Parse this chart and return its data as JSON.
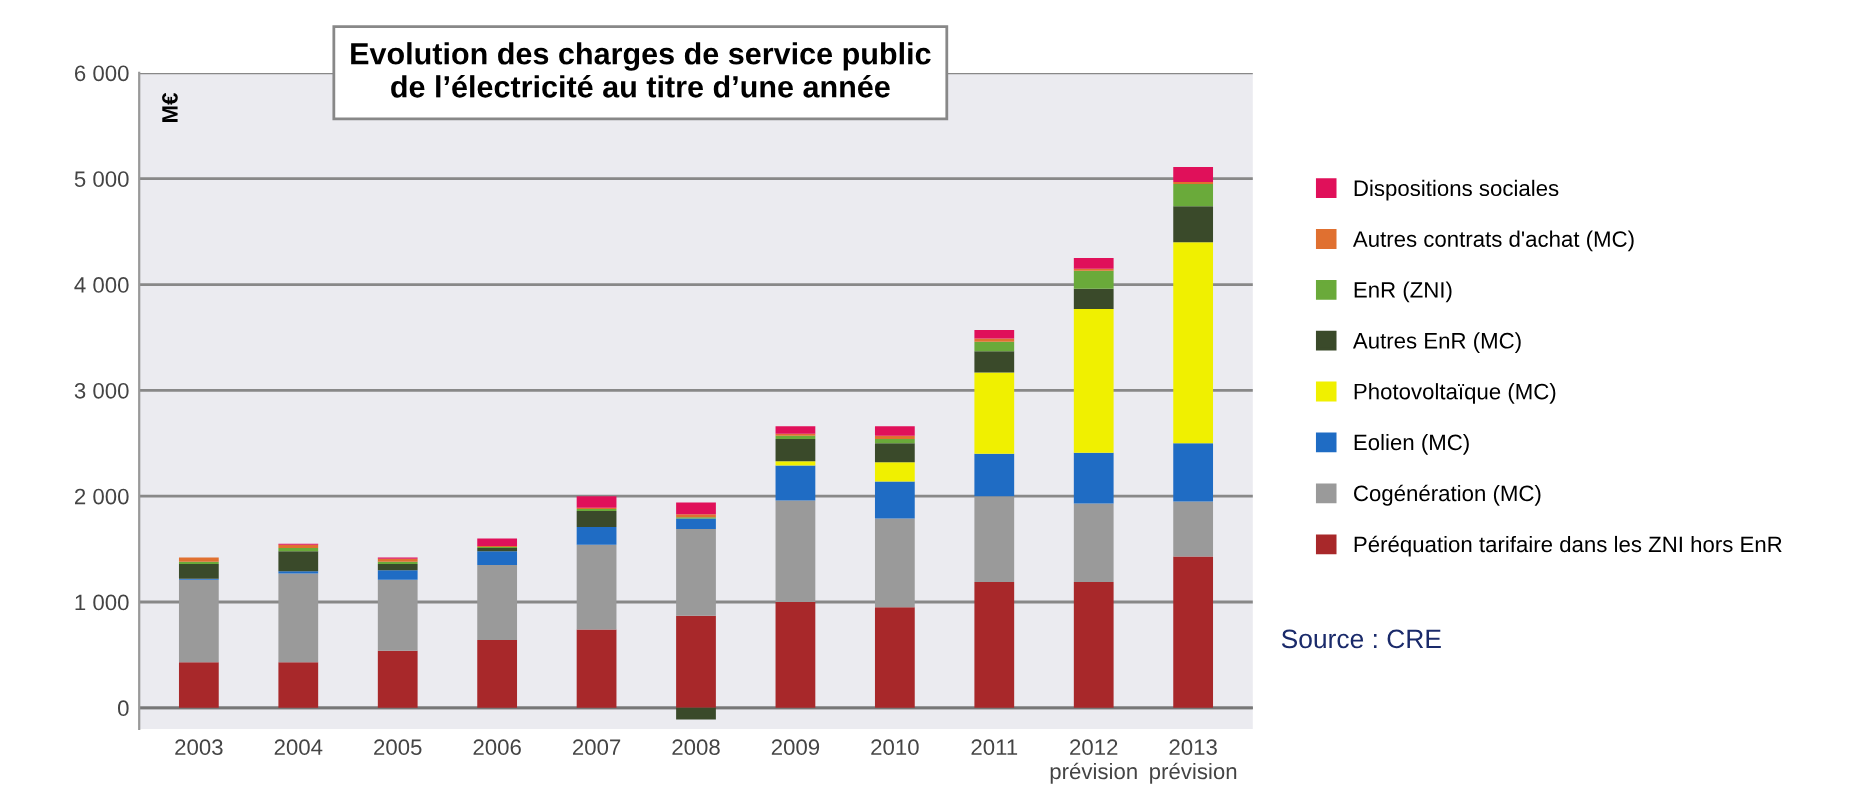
{
  "chart_data": {
    "type": "bar",
    "stacked": true,
    "title": "Evolution des charges de service public\nde l’électricité au titre d’une année",
    "ylabel": "M€",
    "categories": [
      "2003",
      "2004",
      "2005",
      "2006",
      "2007",
      "2008",
      "2009",
      "2010",
      "2011",
      "2012\nprévision",
      "2013\nprévision"
    ],
    "series": [
      {
        "name": "Péréquation tarifaire dans les ZNI hors EnR",
        "color": "#a8282a",
        "values": [
          430,
          430,
          540,
          640,
          740,
          870,
          1000,
          950,
          1190,
          1190,
          1430
        ]
      },
      {
        "name": "Cogénération (MC)",
        "color": "#9a9a9a",
        "values": [
          780,
          840,
          670,
          710,
          800,
          820,
          960,
          840,
          810,
          740,
          520
        ]
      },
      {
        "name": "Eolien (MC)",
        "color": "#1f6cc4",
        "values": [
          10,
          20,
          90,
          130,
          170,
          100,
          330,
          350,
          400,
          480,
          550
        ]
      },
      {
        "name": "Photovoltaïque (MC)",
        "color": "#f0f000",
        "values": [
          0,
          0,
          0,
          0,
          0,
          0,
          40,
          180,
          770,
          1360,
          1900
        ]
      },
      {
        "name": "Autres EnR (MC)",
        "color": "#3a4a2a",
        "values": [
          140,
          190,
          60,
          30,
          150,
          -110,
          210,
          180,
          200,
          190,
          340
        ]
      },
      {
        "name": "EnR (ZNI)",
        "color": "#6aaa3a",
        "values": [
          20,
          30,
          20,
          10,
          20,
          10,
          30,
          40,
          90,
          170,
          210
        ]
      },
      {
        "name": "Autres contrats d'achat (MC)",
        "color": "#e07030",
        "values": [
          40,
          30,
          30,
          10,
          10,
          30,
          20,
          30,
          30,
          20,
          20
        ]
      },
      {
        "name": "Dispositions sociales",
        "color": "#e0105a",
        "values": [
          0,
          10,
          10,
          70,
          110,
          110,
          70,
          90,
          80,
          100,
          140
        ]
      }
    ],
    "ylim": [
      -200,
      6000
    ],
    "yticks": [
      {
        "value": 0,
        "label": "0"
      },
      {
        "value": 1000,
        "label": "1 000"
      },
      {
        "value": 2000,
        "label": "2 000"
      },
      {
        "value": 3000,
        "label": "3 000"
      },
      {
        "value": 4000,
        "label": "4 000"
      },
      {
        "value": 5000,
        "label": "5 000"
      },
      {
        "value": 6000,
        "label": "6 000"
      }
    ],
    "grid": "y",
    "legend": "right",
    "annotations": [
      "Source : CRE"
    ]
  }
}
